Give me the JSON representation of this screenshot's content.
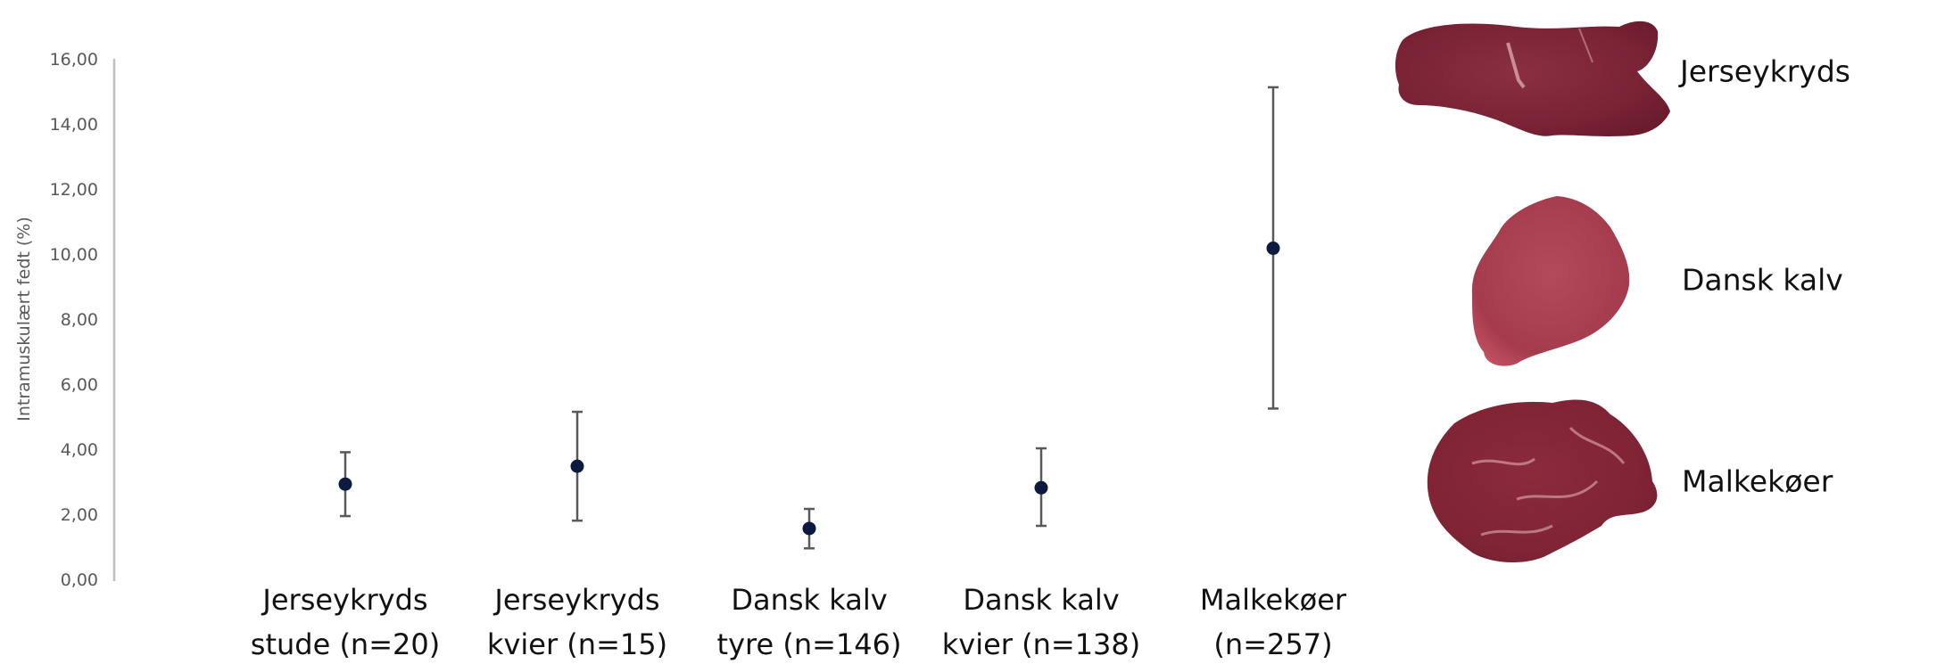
{
  "colors": {
    "marker": "#0c1a3f",
    "error_bar": "#595959",
    "axis": "#bfbfbf",
    "tick_text": "#595959",
    "label_text": "#111111"
  },
  "chart_data": {
    "type": "scatter",
    "subtype": "dot-with-error-bars",
    "title": "",
    "xlabel": "",
    "ylabel": "Intramuskulært fedt (%)",
    "ylim": [
      0,
      16
    ],
    "yticks": [
      "0,00",
      "2,00",
      "4,00",
      "6,00",
      "8,00",
      "10,00",
      "12,00",
      "14,00",
      "16,00"
    ],
    "grid": false,
    "legend": null,
    "categories": [
      [
        "Jerseykryds",
        "stude (n=20)"
      ],
      [
        "Jerseykryds",
        "kvier (n=15)"
      ],
      [
        "Dansk kalv",
        "tyre (n=146)"
      ],
      [
        "Dansk kalv",
        "kvier (n=138)"
      ],
      [
        "Malkekøer",
        "(n=257)"
      ]
    ],
    "series": [
      {
        "name": "Intramuskulært fedt",
        "values": [
          2.92,
          3.47,
          1.56,
          2.81,
          10.16
        ],
        "upper": [
          3.9,
          5.14,
          2.16,
          4.02,
          15.1
        ],
        "lower": [
          1.94,
          1.8,
          0.95,
          1.64,
          5.24
        ]
      }
    ]
  },
  "side_panel": {
    "items": [
      {
        "label": "Jerseykryds",
        "image": "steak-jerseykryds"
      },
      {
        "label": "Dansk kalv",
        "image": "steak-dansk-kalv"
      },
      {
        "label": "Malkekøer",
        "image": "steak-malkekoer"
      }
    ]
  }
}
